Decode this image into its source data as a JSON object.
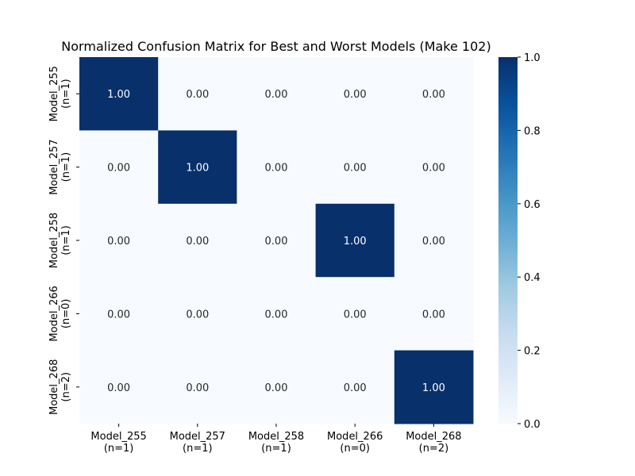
{
  "chart_data": {
    "type": "heatmap",
    "title": "Normalized Confusion Matrix for Best and Worst Models (Make 102)",
    "x_categories": [
      [
        "Model_255",
        "(n=1)"
      ],
      [
        "Model_257",
        "(n=1)"
      ],
      [
        "Model_258",
        "(n=1)"
      ],
      [
        "Model_266",
        "(n=0)"
      ],
      [
        "Model_268",
        "(n=2)"
      ]
    ],
    "y_categories": [
      [
        "Model_255",
        "(n=1)"
      ],
      [
        "Model_257",
        "(n=1)"
      ],
      [
        "Model_258",
        "(n=1)"
      ],
      [
        "Model_266",
        "(n=0)"
      ],
      [
        "Model_268",
        "(n=2)"
      ]
    ],
    "values": [
      [
        1.0,
        0.0,
        0.0,
        0.0,
        0.0
      ],
      [
        0.0,
        1.0,
        0.0,
        0.0,
        0.0
      ],
      [
        0.0,
        0.0,
        0.0,
        1.0,
        0.0
      ],
      [
        0.0,
        0.0,
        0.0,
        0.0,
        0.0
      ],
      [
        0.0,
        0.0,
        0.0,
        0.0,
        1.0
      ]
    ],
    "cell_labels": [
      [
        "1.00",
        "0.00",
        "0.00",
        "0.00",
        "0.00"
      ],
      [
        "0.00",
        "1.00",
        "0.00",
        "0.00",
        "0.00"
      ],
      [
        "0.00",
        "0.00",
        "0.00",
        "1.00",
        "0.00"
      ],
      [
        "0.00",
        "0.00",
        "0.00",
        "0.00",
        "0.00"
      ],
      [
        "0.00",
        "0.00",
        "0.00",
        "0.00",
        "1.00"
      ]
    ],
    "colorbar": {
      "range": [
        0.0,
        1.0
      ],
      "ticks": [
        0.0,
        0.2,
        0.4,
        0.6,
        0.8,
        1.0
      ],
      "tick_labels": [
        "0.0",
        "0.2",
        "0.4",
        "0.6",
        "0.8",
        "1.0"
      ],
      "colormap": "Blues",
      "low_color": "#f7fbff",
      "high_color": "#08306b"
    }
  }
}
